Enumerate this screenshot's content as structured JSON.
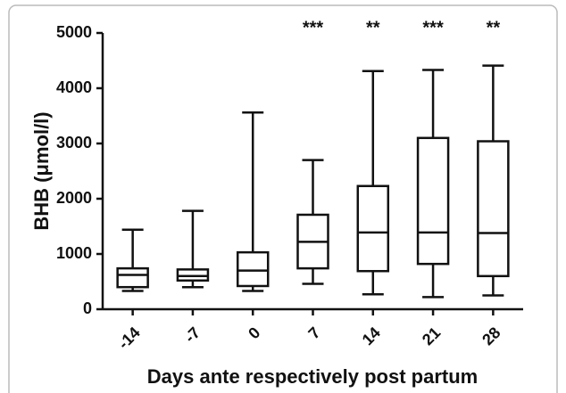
{
  "chart_data": {
    "type": "box",
    "ylabel": "BHB (μmol/l)",
    "xlabel": "Days ante respectively post partum",
    "categories": [
      "-14",
      "-7",
      "0",
      "7",
      "14",
      "21",
      "28"
    ],
    "boxes": [
      {
        "min": 330,
        "q1": 400,
        "median": 620,
        "q3": 740,
        "max": 1440
      },
      {
        "min": 400,
        "q1": 520,
        "median": 600,
        "q3": 720,
        "max": 1780
      },
      {
        "min": 330,
        "q1": 420,
        "median": 700,
        "q3": 1030,
        "max": 3560
      },
      {
        "min": 460,
        "q1": 740,
        "median": 1220,
        "q3": 1710,
        "max": 2700
      },
      {
        "min": 270,
        "q1": 690,
        "median": 1390,
        "q3": 2230,
        "max": 4310
      },
      {
        "min": 220,
        "q1": 820,
        "median": 1390,
        "q3": 3100,
        "max": 4330
      },
      {
        "min": 250,
        "q1": 600,
        "median": 1380,
        "q3": 3040,
        "max": 4410
      }
    ],
    "annotations": [
      {
        "category": "7",
        "text": "***"
      },
      {
        "category": "14",
        "text": "**"
      },
      {
        "category": "21",
        "text": "***"
      },
      {
        "category": "28",
        "text": "**"
      }
    ],
    "color": "#111111",
    "ylim": [
      0,
      5000
    ],
    "yticks": [
      0,
      1000,
      2000,
      3000,
      4000,
      5000
    ]
  }
}
